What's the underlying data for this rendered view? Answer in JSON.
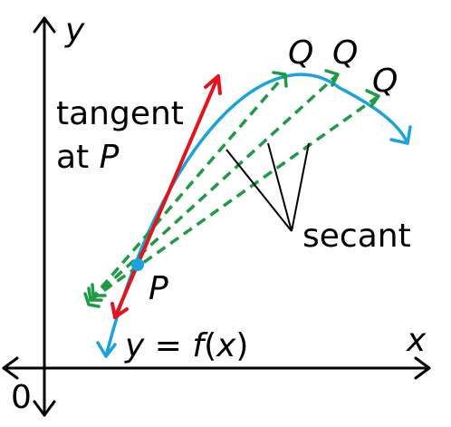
{
  "labels": {
    "y_axis": "y",
    "x_axis": "x",
    "origin": "0",
    "tangent_line1": "tangent",
    "tangent_line2_prefix": "at ",
    "tangent_line2_point": "P",
    "point_label": "P",
    "secant_label": "secant",
    "q1": "Q",
    "q2": "Q",
    "q3": "Q",
    "function_label_lhs": "y",
    "function_label_eq": " = ",
    "function_label_f": "f",
    "function_label_open": "(",
    "function_label_x": "x",
    "function_label_close": ")"
  },
  "colors": {
    "axes": "#000000",
    "curve": "#1aa3dd",
    "tangent": "#e3141c",
    "secant": "#1f9a45",
    "point": "#1aa3dd"
  }
}
